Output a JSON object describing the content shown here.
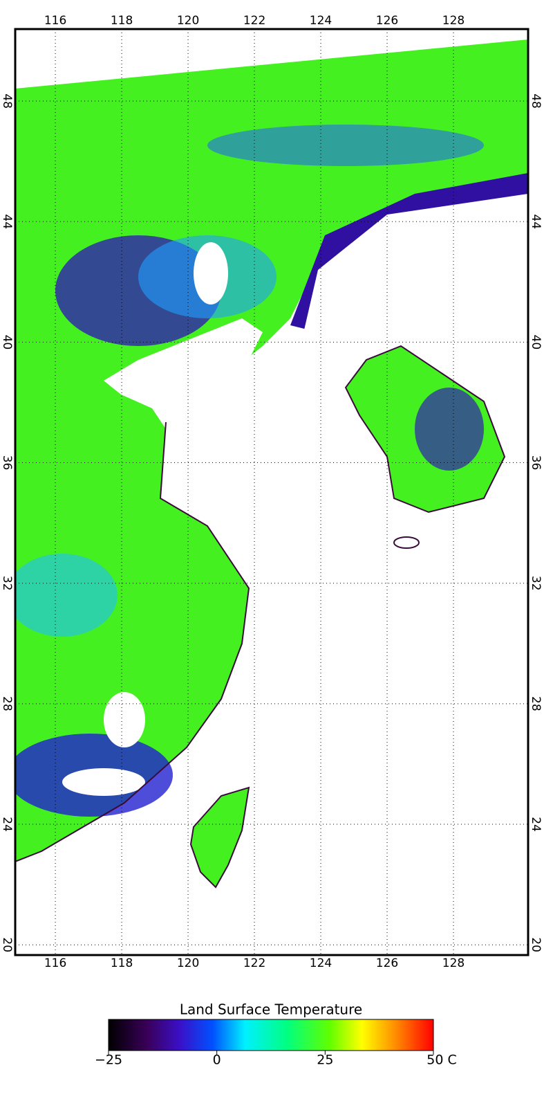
{
  "map": {
    "xlim": [
      114.79,
      130.25
    ],
    "ylim": [
      19.66,
      50.39
    ],
    "lon_ticks": [
      116,
      118,
      120,
      122,
      124,
      126,
      128
    ],
    "lat_ticks": [
      20,
      24,
      28,
      32,
      36,
      40,
      44,
      48
    ],
    "colorbar": {
      "title": "Land Surface Temperature",
      "range": [
        -25,
        50
      ],
      "ticks": [
        {
          "value": -25,
          "label": "−25"
        },
        0,
        25,
        {
          "value": 50,
          "label": "50 C"
        }
      ]
    }
  }
}
